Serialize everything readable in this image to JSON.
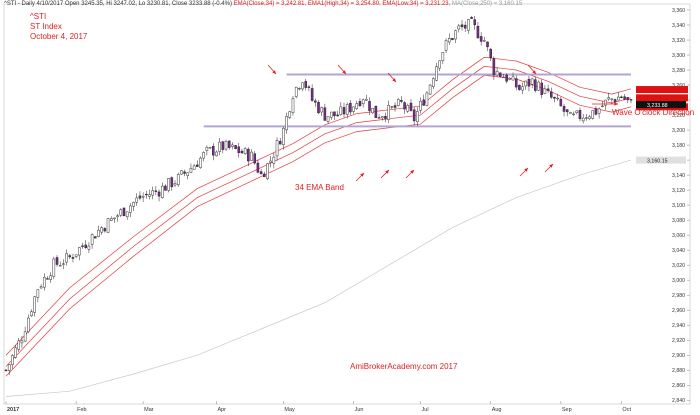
{
  "header": {
    "main": "^STI - Daily 4/10/2017 Open 3245.35, Hi 3247.02, Lo 3230.81, Close 3233.88 (-0.4%)",
    "ema_close": "EMA(Close,34) = 3,242.81,",
    "ema_high": "EMA1(High,34) = 3,254.80,",
    "ema_low": "EMA(Low,34) = 3,231.23,",
    "ma_close": "MA(Close,250) = 3,160.15"
  },
  "annotations": {
    "symbol": "^STI",
    "name": "ST Index",
    "date": "October 4, 2017",
    "band_label": "34 EMA Band",
    "direction_label": "Wave O'clock Direction",
    "watermark": "AmiBrokerAcademy.com  2017"
  },
  "colors": {
    "up_candle": "#ffffff",
    "down_candle": "#7a2a8a",
    "ema_lines": "#e43b3b",
    "ma_line": "#c8c8c8",
    "band_lines": "#b3a4d6",
    "annotation": "#e02020",
    "last_price_tag": "#111111",
    "band_tags": "#dd1111",
    "ma_tag": "#e0e0e0"
  },
  "chart_data": {
    "type": "candlestick",
    "instrument": "^STI",
    "x_tick_labels": [
      "2017",
      "Feb",
      "Mar",
      "Apr",
      "May",
      "Jun",
      "Jul",
      "Aug",
      "Sep",
      "Oct"
    ],
    "x_tick_days": [
      0,
      22,
      43,
      66,
      87,
      109,
      130,
      152,
      174,
      193
    ],
    "y_ticks": [
      2840,
      2860,
      2880,
      2900,
      2920,
      2940,
      2960,
      2980,
      3000,
      3020,
      3040,
      3060,
      3080,
      3100,
      3120,
      3140,
      3160,
      3180,
      3200,
      3220,
      3240,
      3260,
      3280,
      3300,
      3320,
      3340,
      3360
    ],
    "ylim": [
      2835,
      3368
    ],
    "series_path": {
      "close": [
        [
          0,
          2880
        ],
        [
          5,
          2925
        ],
        [
          10,
          2990
        ],
        [
          15,
          3020
        ],
        [
          20,
          3030
        ],
        [
          25,
          3050
        ],
        [
          30,
          3070
        ],
        [
          36,
          3090
        ],
        [
          42,
          3110
        ],
        [
          48,
          3120
        ],
        [
          54,
          3135
        ],
        [
          58,
          3150
        ],
        [
          63,
          3170
        ],
        [
          68,
          3178
        ],
        [
          73,
          3172
        ],
        [
          77,
          3165
        ],
        [
          80,
          3140
        ],
        [
          83,
          3160
        ],
        [
          87,
          3200
        ],
        [
          90,
          3250
        ],
        [
          93,
          3270
        ],
        [
          96,
          3240
        ],
        [
          100,
          3220
        ],
        [
          104,
          3220
        ],
        [
          108,
          3230
        ],
        [
          112,
          3245
        ],
        [
          116,
          3220
        ],
        [
          120,
          3225
        ],
        [
          124,
          3235
        ],
        [
          128,
          3215
        ],
        [
          132,
          3250
        ],
        [
          136,
          3300
        ],
        [
          139,
          3320
        ],
        [
          142,
          3335
        ],
        [
          146,
          3340
        ],
        [
          150,
          3320
        ],
        [
          153,
          3280
        ],
        [
          157,
          3270
        ],
        [
          161,
          3255
        ],
        [
          165,
          3265
        ],
        [
          169,
          3250
        ],
        [
          173,
          3235
        ],
        [
          177,
          3215
        ],
        [
          181,
          3220
        ],
        [
          185,
          3225
        ],
        [
          189,
          3240
        ],
        [
          193,
          3245
        ],
        [
          196,
          3234
        ]
      ],
      "ema34": [
        [
          0,
          2885
        ],
        [
          20,
          2975
        ],
        [
          40,
          3045
        ],
        [
          60,
          3110
        ],
        [
          80,
          3150
        ],
        [
          90,
          3170
        ],
        [
          100,
          3195
        ],
        [
          110,
          3210
        ],
        [
          120,
          3215
        ],
        [
          130,
          3220
        ],
        [
          140,
          3255
        ],
        [
          150,
          3285
        ],
        [
          160,
          3280
        ],
        [
          170,
          3265
        ],
        [
          180,
          3245
        ],
        [
          190,
          3236
        ],
        [
          196,
          3243
        ]
      ],
      "ema34_high": [
        [
          0,
          2900
        ],
        [
          20,
          2990
        ],
        [
          40,
          3058
        ],
        [
          60,
          3122
        ],
        [
          80,
          3162
        ],
        [
          90,
          3182
        ],
        [
          100,
          3207
        ],
        [
          110,
          3222
        ],
        [
          120,
          3227
        ],
        [
          130,
          3232
        ],
        [
          140,
          3267
        ],
        [
          150,
          3297
        ],
        [
          160,
          3292
        ],
        [
          170,
          3277
        ],
        [
          180,
          3257
        ],
        [
          190,
          3248
        ],
        [
          196,
          3255
        ]
      ],
      "ema34_low": [
        [
          0,
          2872
        ],
        [
          20,
          2962
        ],
        [
          40,
          3032
        ],
        [
          60,
          3098
        ],
        [
          80,
          3138
        ],
        [
          90,
          3158
        ],
        [
          100,
          3183
        ],
        [
          110,
          3198
        ],
        [
          120,
          3203
        ],
        [
          130,
          3208
        ],
        [
          140,
          3243
        ],
        [
          150,
          3273
        ],
        [
          160,
          3268
        ],
        [
          170,
          3253
        ],
        [
          180,
          3233
        ],
        [
          190,
          3224
        ],
        [
          196,
          3231
        ]
      ],
      "ma250": [
        [
          0,
          2845
        ],
        [
          20,
          2852
        ],
        [
          40,
          2875
        ],
        [
          60,
          2900
        ],
        [
          80,
          2935
        ],
        [
          100,
          2970
        ],
        [
          120,
          3020
        ],
        [
          140,
          3070
        ],
        [
          160,
          3110
        ],
        [
          180,
          3140
        ],
        [
          196,
          3160
        ]
      ]
    },
    "band_lines": [
      {
        "y": 3274,
        "from_day": 88,
        "to_day": 196
      },
      {
        "y": 3205,
        "from_day": 62,
        "to_day": 196
      }
    ],
    "price_tags": [
      {
        "value": "3,233.88",
        "y": 3234,
        "style": "last"
      },
      {
        "value": "3,160.15",
        "y": 3160,
        "style": "ma"
      }
    ],
    "band_tags_y": [
      3254,
      3243,
      3231
    ]
  }
}
